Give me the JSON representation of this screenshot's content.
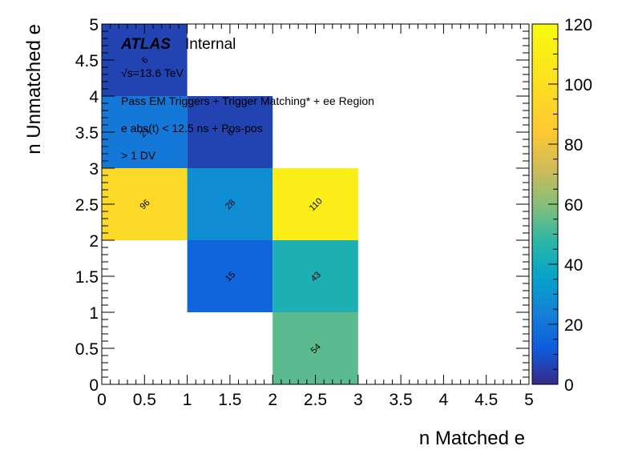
{
  "chart_data": {
    "type": "heatmap",
    "xlabel": "n Matched e",
    "ylabel": "n Unmatched e",
    "xlim": [
      0,
      5
    ],
    "ylim": [
      0,
      5
    ],
    "zlim": [
      0,
      120
    ],
    "x_ticks": [
      "0",
      "0.5",
      "1",
      "1.5",
      "2",
      "2.5",
      "3",
      "3.5",
      "4",
      "4.5",
      "5"
    ],
    "y_ticks": [
      "0",
      "0.5",
      "1",
      "1.5",
      "2",
      "2.5",
      "3",
      "3.5",
      "4",
      "4.5",
      "5"
    ],
    "z_ticks": [
      "0",
      "20",
      "40",
      "60",
      "80",
      "100",
      "120"
    ],
    "colormap": "parula",
    "cells": [
      {
        "x0": 0,
        "x1": 1,
        "y0": 4,
        "y1": 5,
        "value": 6
      },
      {
        "x0": 0,
        "x1": 1,
        "y0": 3,
        "y1": 4,
        "value": 21
      },
      {
        "x0": 1,
        "x1": 2,
        "y0": 3,
        "y1": 4,
        "value": 6
      },
      {
        "x0": 0,
        "x1": 1,
        "y0": 2,
        "y1": 3,
        "value": 96
      },
      {
        "x0": 1,
        "x1": 2,
        "y0": 2,
        "y1": 3,
        "value": 28
      },
      {
        "x0": 2,
        "x1": 3,
        "y0": 2,
        "y1": 3,
        "value": 110
      },
      {
        "x0": 1,
        "x1": 2,
        "y0": 1,
        "y1": 2,
        "value": 15
      },
      {
        "x0": 2,
        "x1": 3,
        "y0": 1,
        "y1": 2,
        "value": 43
      },
      {
        "x0": 2,
        "x1": 3,
        "y0": 0,
        "y1": 1,
        "value": 54
      }
    ],
    "annotations": {
      "atlas_label": "ATLAS",
      "atlas_status": "Internal",
      "energy": "√s=13.6 TeV",
      "lines": [
        "Pass EM Triggers + Trigger Matching* + ee Region",
        "e abs(t) < 12.5 ns + Pos-pos",
        "> 1 DV"
      ]
    }
  }
}
